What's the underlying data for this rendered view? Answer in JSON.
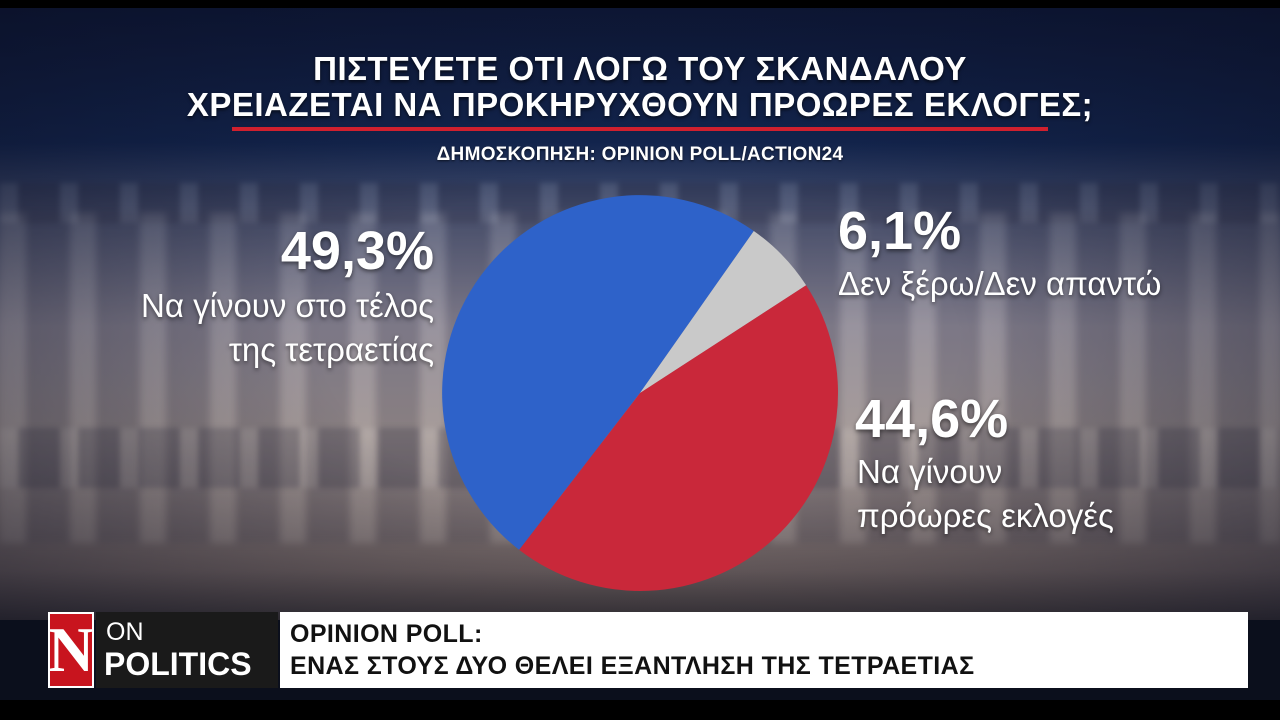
{
  "header": {
    "title_line1": "ΠΙΣΤΕΥΕΤΕ ΟΤΙ ΛΟΓΩ ΤΟΥ ΣΚΑΝΔΑΛΟΥ",
    "title_line2": "ΧΡΕΙΑΖΕΤΑΙ ΝΑ ΠΡΟΚΗΡΥΧΘΟΥΝ ΠΡΟΩΡΕΣ ΕΚΛΟΓΕΣ;",
    "source": "ΔΗΜΟΣΚΟΠΗΣΗ: OPINION POLL/ACTION24"
  },
  "chart_data": {
    "type": "pie",
    "title": "ΠΙΣΤΕΥΕΤΕ ΟΤΙ ΛΟΓΩ ΤΟΥ ΣΚΑΝΔΑΛΟΥ ΧΡΕΙΑΖΕΤΑΙ ΝΑ ΠΡΟΚΗΡΥΧΘΟΥΝ ΠΡΟΩΡΕΣ ΕΚΛΟΓΕΣ;",
    "slices": [
      {
        "label_line1": "Να γίνουν στο τέλος",
        "label_line2": "της τετραετίας",
        "value": 49.3,
        "display": "49,3%",
        "color": "#2e62c9"
      },
      {
        "label_line1": "Δεν ξέρω/Δεν απαντώ",
        "label_line2": "",
        "value": 6.1,
        "display": "6,1%",
        "color": "#c9c9c9"
      },
      {
        "label_line1": "Να γίνουν",
        "label_line2": "πρόωρες εκλογές",
        "value": 44.6,
        "display": "44,6%",
        "color": "#c9283a"
      }
    ]
  },
  "lower_third": {
    "logo_letter": "N",
    "show_line1": "ON",
    "show_line2": "POLITICS",
    "headline_line1": "OPINION POLL:",
    "headline_line2": "ΕΝΑΣ ΣΤΟΥΣ ΔΥΟ ΘΕΛΕΙ ΕΞΑΝΤΛΗΣΗ ΤΗΣ ΤΕΤΡΑΕΤΙΑΣ",
    "logo_color": "#c8141e"
  }
}
